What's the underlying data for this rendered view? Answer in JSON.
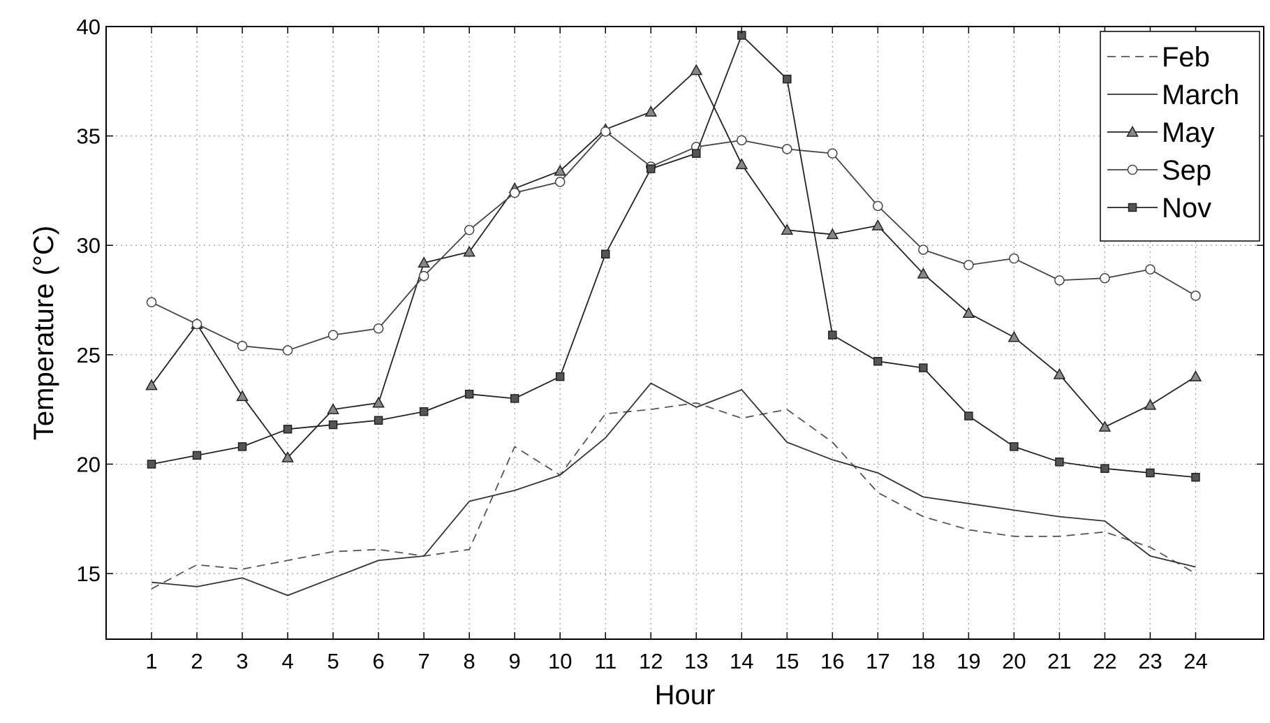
{
  "chart_data": {
    "type": "line",
    "title": "",
    "xlabel": "Hour",
    "ylabel": "Temperature (°C)",
    "x": [
      1,
      2,
      3,
      4,
      5,
      6,
      7,
      8,
      9,
      10,
      11,
      12,
      13,
      14,
      15,
      16,
      17,
      18,
      19,
      20,
      21,
      22,
      23,
      24
    ],
    "xlim": [
      0,
      25.5
    ],
    "ylim": [
      12,
      40
    ],
    "yticks": [
      15,
      20,
      25,
      30,
      35,
      40
    ],
    "grid": true,
    "legend_position": "top-right",
    "series": [
      {
        "name": "Feb",
        "style": "dashed",
        "marker": "none",
        "color": "#555555",
        "values": [
          14.3,
          15.4,
          15.2,
          15.6,
          16.0,
          16.1,
          15.8,
          16.1,
          20.8,
          19.5,
          22.3,
          22.5,
          22.8,
          22.1,
          22.5,
          21.0,
          18.7,
          17.6,
          17.0,
          16.7,
          16.7,
          16.9,
          16.2,
          15.0
        ]
      },
      {
        "name": "March",
        "style": "solid",
        "marker": "none",
        "color": "#333333",
        "values": [
          14.6,
          14.4,
          14.8,
          14.0,
          14.8,
          15.6,
          15.8,
          18.3,
          18.8,
          19.5,
          21.2,
          23.7,
          22.6,
          23.4,
          21.0,
          20.2,
          19.6,
          18.5,
          18.2,
          17.9,
          17.6,
          17.4,
          15.8,
          15.3
        ]
      },
      {
        "name": "May",
        "style": "solid",
        "marker": "triangle",
        "color": "#222222",
        "marker_fill": "#888888",
        "values": [
          23.6,
          26.4,
          23.1,
          20.3,
          22.5,
          22.8,
          29.2,
          29.7,
          32.6,
          33.4,
          35.3,
          36.1,
          38.0,
          33.7,
          30.7,
          30.5,
          30.9,
          28.7,
          26.9,
          25.8,
          24.1,
          21.7,
          22.7,
          24.0
        ]
      },
      {
        "name": "Sep",
        "style": "solid",
        "marker": "circle",
        "color": "#444444",
        "marker_fill": "#ffffff",
        "values": [
          27.4,
          26.4,
          25.4,
          25.2,
          25.9,
          26.2,
          28.6,
          30.7,
          32.4,
          32.9,
          35.2,
          33.6,
          34.5,
          34.8,
          34.4,
          34.2,
          31.8,
          29.8,
          29.1,
          29.4,
          28.4,
          28.5,
          28.9,
          27.7
        ]
      },
      {
        "name": "Nov",
        "style": "solid",
        "marker": "square",
        "color": "#222222",
        "marker_fill": "#555555",
        "values": [
          20.0,
          20.4,
          20.8,
          21.6,
          21.8,
          22.0,
          22.4,
          23.2,
          23.0,
          24.0,
          29.6,
          33.5,
          34.2,
          39.6,
          37.6,
          25.9,
          24.7,
          24.4,
          22.2,
          20.8,
          20.1,
          19.8,
          19.6,
          19.4
        ]
      }
    ]
  }
}
